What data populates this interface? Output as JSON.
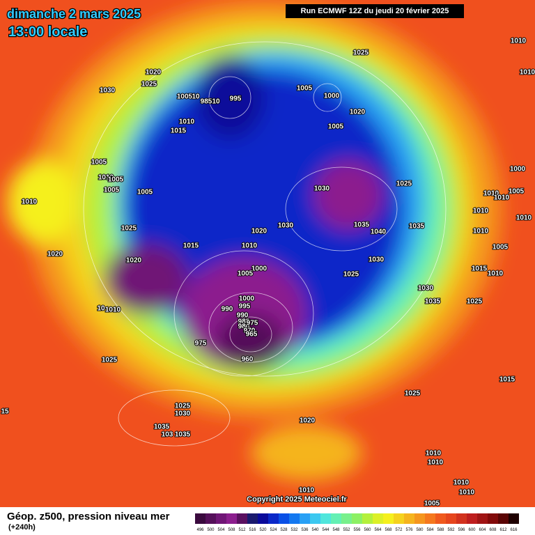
{
  "header": {
    "date": "dimanche 2 mars 2025",
    "time": "13:00 locale",
    "run": "Run ECMWF 12Z du jeudi 20 février 2025"
  },
  "copyright": "Copyright 2025 Meteociel.fr",
  "footer": {
    "label": "Géop. z500, pression niveau mer",
    "lead": "(+240h)"
  },
  "legend": {
    "values": [
      496,
      500,
      504,
      508,
      512,
      516,
      520,
      524,
      528,
      532,
      536,
      540,
      544,
      548,
      552,
      556,
      560,
      564,
      568,
      572,
      576,
      580,
      584,
      588,
      592,
      596,
      600,
      604,
      608,
      612,
      616
    ],
    "colors": [
      "#3a0a3e",
      "#55105a",
      "#701676",
      "#8c1e8e",
      "#5a1060",
      "#1a1a6e",
      "#0a0a9a",
      "#0a28c8",
      "#0a50e6",
      "#1478f0",
      "#28a0f5",
      "#3cc8f0",
      "#50e6dc",
      "#64f0b4",
      "#78f08c",
      "#8cf064",
      "#b4f03c",
      "#dcf028",
      "#f5f01e",
      "#f5d21e",
      "#f5b41e",
      "#f5961e",
      "#f5781e",
      "#f05a1e",
      "#e6461e",
      "#d2321e",
      "#be1e1e",
      "#a01414",
      "#820a0a",
      "#5a0505",
      "#1e0000"
    ]
  },
  "isobar_labels": [
    "1010",
    "1010",
    "1025",
    "1020",
    "1025",
    "1030",
    "1005",
    "10",
    "985",
    "10",
    "995",
    "1005",
    "1000",
    "1020",
    "1005",
    "1010",
    "1015",
    "1005",
    "1010",
    "1005",
    "1005",
    "1005",
    "1010",
    "1030",
    "1025",
    "1000",
    "1010",
    "1010",
    "1005",
    "1010",
    "1010",
    "1025",
    "1020",
    "1030",
    "1035",
    "1040",
    "1035",
    "1010",
    "1015",
    "1010",
    "1005",
    "1020",
    "1020",
    "1030",
    "1000",
    "1005",
    "1025",
    "1015",
    "1010",
    "1030",
    "1035",
    "1025",
    "1000",
    "995",
    "990",
    "1010",
    "10",
    "990",
    "985",
    "980",
    "975",
    "970",
    "965",
    "975",
    "960",
    "1025",
    "1015",
    "1025",
    "1025",
    "1030",
    "15",
    "1020",
    "1035",
    "103",
    "1035",
    "1010",
    "1010",
    "1010",
    "1010",
    "1010",
    "1005"
  ]
}
